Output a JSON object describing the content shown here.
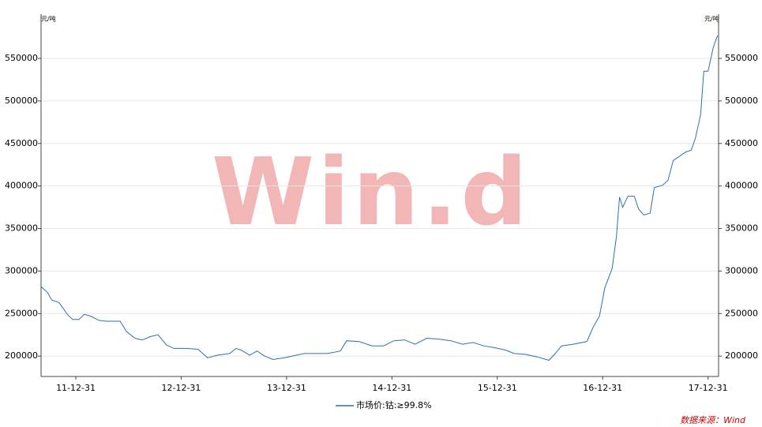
{
  "chart_data": {
    "type": "line",
    "y_unit": "元/吨",
    "y2_unit": "元/吨",
    "watermark": "Win.d",
    "source": "数据来源：Wind",
    "x": [
      2011.67,
      2011.73,
      2011.77,
      2011.84,
      2011.92,
      2011.97,
      2012.03,
      2012.08,
      2012.14,
      2012.22,
      2012.29,
      2012.42,
      2012.48,
      2012.56,
      2012.63,
      2012.71,
      2012.78,
      2012.86,
      2012.93,
      2013.04,
      2013.16,
      2013.25,
      2013.34,
      2013.46,
      2013.52,
      2013.57,
      2013.65,
      2013.72,
      2013.79,
      2013.87,
      2013.98,
      2014.09,
      2014.17,
      2014.28,
      2014.39,
      2014.51,
      2014.57,
      2014.69,
      2014.81,
      2014.92,
      2015.02,
      2015.12,
      2015.22,
      2015.33,
      2015.44,
      2015.56,
      2015.67,
      2015.77,
      2015.87,
      2015.97,
      2016.08,
      2016.16,
      2016.27,
      2016.38,
      2016.49,
      2016.55,
      2016.61,
      2016.72,
      2016.85,
      2016.91,
      2016.97,
      2017.02,
      2017.09,
      2017.13,
      2017.16,
      2017.19,
      2017.24,
      2017.3,
      2017.34,
      2017.39,
      2017.45,
      2017.49,
      2017.57,
      2017.62,
      2017.67,
      2017.73,
      2017.79,
      2017.84,
      2017.88,
      2017.93,
      2017.96,
      2018.0,
      2018.05,
      2018.09
    ],
    "series": [
      {
        "name": "市场价:钴:≥99.8%",
        "color": "#2e6fb3",
        "values": [
          281700,
          275000,
          266000,
          263000,
          249000,
          243000,
          243000,
          249000,
          247000,
          242000,
          241000,
          241000,
          229000,
          221000,
          219000,
          223000,
          225000,
          213000,
          209000,
          209000,
          208000,
          198000,
          201000,
          203000,
          209000,
          207000,
          201000,
          206000,
          200000,
          196000,
          198000,
          201000,
          203000,
          203000,
          203000,
          206000,
          218000,
          217000,
          212000,
          212000,
          218000,
          219000,
          214000,
          221000,
          220000,
          218000,
          214000,
          216000,
          212000,
          210000,
          207000,
          203000,
          202000,
          199000,
          195000,
          203000,
          212000,
          214000,
          217000,
          234000,
          247000,
          280000,
          303000,
          340000,
          387000,
          375000,
          388000,
          388000,
          373000,
          366000,
          368000,
          398000,
          401000,
          407000,
          430000,
          435000,
          440000,
          442000,
          456000,
          484000,
          535000,
          535000,
          563000,
          577000
        ]
      }
    ],
    "xlim": [
      2011.67,
      2018.1
    ],
    "xticks": [
      {
        "value": 2012,
        "label": "11-12-31"
      },
      {
        "value": 2013,
        "label": "12-12-31"
      },
      {
        "value": 2014,
        "label": "13-12-31"
      },
      {
        "value": 2015,
        "label": "14-12-31"
      },
      {
        "value": 2016,
        "label": "15-12-31"
      },
      {
        "value": 2017,
        "label": "16-12-31"
      },
      {
        "value": 2018,
        "label": "17-12-31"
      }
    ],
    "ylim": [
      176000,
      602000
    ],
    "yticks": [
      200000,
      250000,
      300000,
      350000,
      400000,
      450000,
      500000,
      550000
    ],
    "y2lim": [
      176000,
      602000
    ],
    "y2ticks": [
      200000,
      250000,
      300000,
      350000,
      400000,
      450000,
      500000,
      550000
    ],
    "grid": true
  }
}
